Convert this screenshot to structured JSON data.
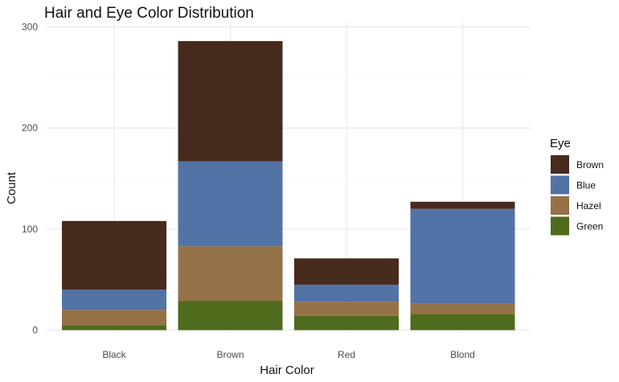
{
  "chart_data": {
    "type": "bar",
    "stacked": true,
    "title": "Hair and Eye Color Distribution",
    "xlabel": "Hair Color",
    "ylabel": "Count",
    "categories": [
      "Black",
      "Brown",
      "Red",
      "Blond"
    ],
    "ylim": [
      0,
      300
    ],
    "yticks": [
      0,
      100,
      200,
      300
    ],
    "grid": true,
    "legend": {
      "title": "Eye",
      "position": "right"
    },
    "series": [
      {
        "name": "Green",
        "color": "#4f6b1c",
        "values": [
          5,
          29,
          14,
          16
        ]
      },
      {
        "name": "Hazel",
        "color": "#957147",
        "values": [
          15,
          54,
          14,
          10
        ]
      },
      {
        "name": "Blue",
        "color": "#5273a5",
        "values": [
          20,
          84,
          17,
          94
        ]
      },
      {
        "name": "Brown",
        "color": "#472b1e",
        "values": [
          68,
          119,
          26,
          7
        ]
      }
    ],
    "legend_order": [
      "Brown",
      "Blue",
      "Hazel",
      "Green"
    ]
  }
}
